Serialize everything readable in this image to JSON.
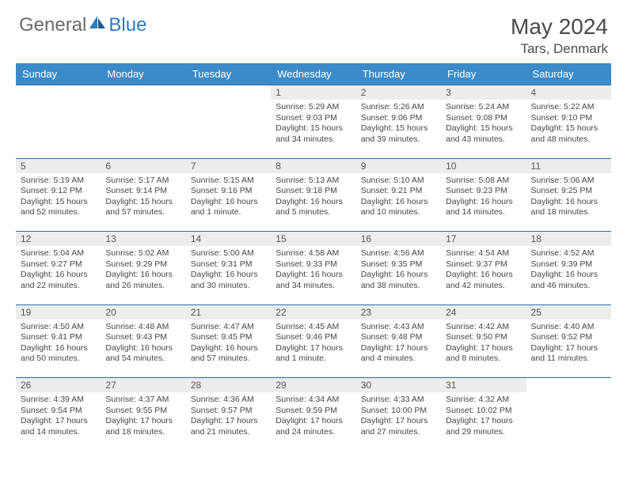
{
  "brand": {
    "word1": "General",
    "word2": "Blue",
    "word1_color": "#6a6a6a",
    "word2_color": "#2b7bbf"
  },
  "title": "May 2024",
  "location": "Tars, Denmark",
  "colors": {
    "header_bg": "#3b8bc9",
    "header_text": "#ffffff",
    "daynum_bg": "#ededed",
    "daynum_text": "#555555",
    "row_border": "#2b6fa8",
    "body_text": "#464646",
    "page_bg": "#ffffff"
  },
  "day_headers": [
    "Sunday",
    "Monday",
    "Tuesday",
    "Wednesday",
    "Thursday",
    "Friday",
    "Saturday"
  ],
  "weeks": [
    [
      {
        "n": "",
        "sunrise": "",
        "sunset": "",
        "daylight": ""
      },
      {
        "n": "",
        "sunrise": "",
        "sunset": "",
        "daylight": ""
      },
      {
        "n": "",
        "sunrise": "",
        "sunset": "",
        "daylight": ""
      },
      {
        "n": "1",
        "sunrise": "Sunrise: 5:29 AM",
        "sunset": "Sunset: 9:03 PM",
        "daylight": "Daylight: 15 hours and 34 minutes."
      },
      {
        "n": "2",
        "sunrise": "Sunrise: 5:26 AM",
        "sunset": "Sunset: 9:06 PM",
        "daylight": "Daylight: 15 hours and 39 minutes."
      },
      {
        "n": "3",
        "sunrise": "Sunrise: 5:24 AM",
        "sunset": "Sunset: 9:08 PM",
        "daylight": "Daylight: 15 hours and 43 minutes."
      },
      {
        "n": "4",
        "sunrise": "Sunrise: 5:22 AM",
        "sunset": "Sunset: 9:10 PM",
        "daylight": "Daylight: 15 hours and 48 minutes."
      }
    ],
    [
      {
        "n": "5",
        "sunrise": "Sunrise: 5:19 AM",
        "sunset": "Sunset: 9:12 PM",
        "daylight": "Daylight: 15 hours and 52 minutes."
      },
      {
        "n": "6",
        "sunrise": "Sunrise: 5:17 AM",
        "sunset": "Sunset: 9:14 PM",
        "daylight": "Daylight: 15 hours and 57 minutes."
      },
      {
        "n": "7",
        "sunrise": "Sunrise: 5:15 AM",
        "sunset": "Sunset: 9:16 PM",
        "daylight": "Daylight: 16 hours and 1 minute."
      },
      {
        "n": "8",
        "sunrise": "Sunrise: 5:13 AM",
        "sunset": "Sunset: 9:18 PM",
        "daylight": "Daylight: 16 hours and 5 minutes."
      },
      {
        "n": "9",
        "sunrise": "Sunrise: 5:10 AM",
        "sunset": "Sunset: 9:21 PM",
        "daylight": "Daylight: 16 hours and 10 minutes."
      },
      {
        "n": "10",
        "sunrise": "Sunrise: 5:08 AM",
        "sunset": "Sunset: 9:23 PM",
        "daylight": "Daylight: 16 hours and 14 minutes."
      },
      {
        "n": "11",
        "sunrise": "Sunrise: 5:06 AM",
        "sunset": "Sunset: 9:25 PM",
        "daylight": "Daylight: 16 hours and 18 minutes."
      }
    ],
    [
      {
        "n": "12",
        "sunrise": "Sunrise: 5:04 AM",
        "sunset": "Sunset: 9:27 PM",
        "daylight": "Daylight: 16 hours and 22 minutes."
      },
      {
        "n": "13",
        "sunrise": "Sunrise: 5:02 AM",
        "sunset": "Sunset: 9:29 PM",
        "daylight": "Daylight: 16 hours and 26 minutes."
      },
      {
        "n": "14",
        "sunrise": "Sunrise: 5:00 AM",
        "sunset": "Sunset: 9:31 PM",
        "daylight": "Daylight: 16 hours and 30 minutes."
      },
      {
        "n": "15",
        "sunrise": "Sunrise: 4:58 AM",
        "sunset": "Sunset: 9:33 PM",
        "daylight": "Daylight: 16 hours and 34 minutes."
      },
      {
        "n": "16",
        "sunrise": "Sunrise: 4:56 AM",
        "sunset": "Sunset: 9:35 PM",
        "daylight": "Daylight: 16 hours and 38 minutes."
      },
      {
        "n": "17",
        "sunrise": "Sunrise: 4:54 AM",
        "sunset": "Sunset: 9:37 PM",
        "daylight": "Daylight: 16 hours and 42 minutes."
      },
      {
        "n": "18",
        "sunrise": "Sunrise: 4:52 AM",
        "sunset": "Sunset: 9:39 PM",
        "daylight": "Daylight: 16 hours and 46 minutes."
      }
    ],
    [
      {
        "n": "19",
        "sunrise": "Sunrise: 4:50 AM",
        "sunset": "Sunset: 9:41 PM",
        "daylight": "Daylight: 16 hours and 50 minutes."
      },
      {
        "n": "20",
        "sunrise": "Sunrise: 4:48 AM",
        "sunset": "Sunset: 9:43 PM",
        "daylight": "Daylight: 16 hours and 54 minutes."
      },
      {
        "n": "21",
        "sunrise": "Sunrise: 4:47 AM",
        "sunset": "Sunset: 9:45 PM",
        "daylight": "Daylight: 16 hours and 57 minutes."
      },
      {
        "n": "22",
        "sunrise": "Sunrise: 4:45 AM",
        "sunset": "Sunset: 9:46 PM",
        "daylight": "Daylight: 17 hours and 1 minute."
      },
      {
        "n": "23",
        "sunrise": "Sunrise: 4:43 AM",
        "sunset": "Sunset: 9:48 PM",
        "daylight": "Daylight: 17 hours and 4 minutes."
      },
      {
        "n": "24",
        "sunrise": "Sunrise: 4:42 AM",
        "sunset": "Sunset: 9:50 PM",
        "daylight": "Daylight: 17 hours and 8 minutes."
      },
      {
        "n": "25",
        "sunrise": "Sunrise: 4:40 AM",
        "sunset": "Sunset: 9:52 PM",
        "daylight": "Daylight: 17 hours and 11 minutes."
      }
    ],
    [
      {
        "n": "26",
        "sunrise": "Sunrise: 4:39 AM",
        "sunset": "Sunset: 9:54 PM",
        "daylight": "Daylight: 17 hours and 14 minutes."
      },
      {
        "n": "27",
        "sunrise": "Sunrise: 4:37 AM",
        "sunset": "Sunset: 9:55 PM",
        "daylight": "Daylight: 17 hours and 18 minutes."
      },
      {
        "n": "28",
        "sunrise": "Sunrise: 4:36 AM",
        "sunset": "Sunset: 9:57 PM",
        "daylight": "Daylight: 17 hours and 21 minutes."
      },
      {
        "n": "29",
        "sunrise": "Sunrise: 4:34 AM",
        "sunset": "Sunset: 9:59 PM",
        "daylight": "Daylight: 17 hours and 24 minutes."
      },
      {
        "n": "30",
        "sunrise": "Sunrise: 4:33 AM",
        "sunset": "Sunset: 10:00 PM",
        "daylight": "Daylight: 17 hours and 27 minutes."
      },
      {
        "n": "31",
        "sunrise": "Sunrise: 4:32 AM",
        "sunset": "Sunset: 10:02 PM",
        "daylight": "Daylight: 17 hours and 29 minutes."
      },
      {
        "n": "",
        "sunrise": "",
        "sunset": "",
        "daylight": ""
      }
    ]
  ]
}
